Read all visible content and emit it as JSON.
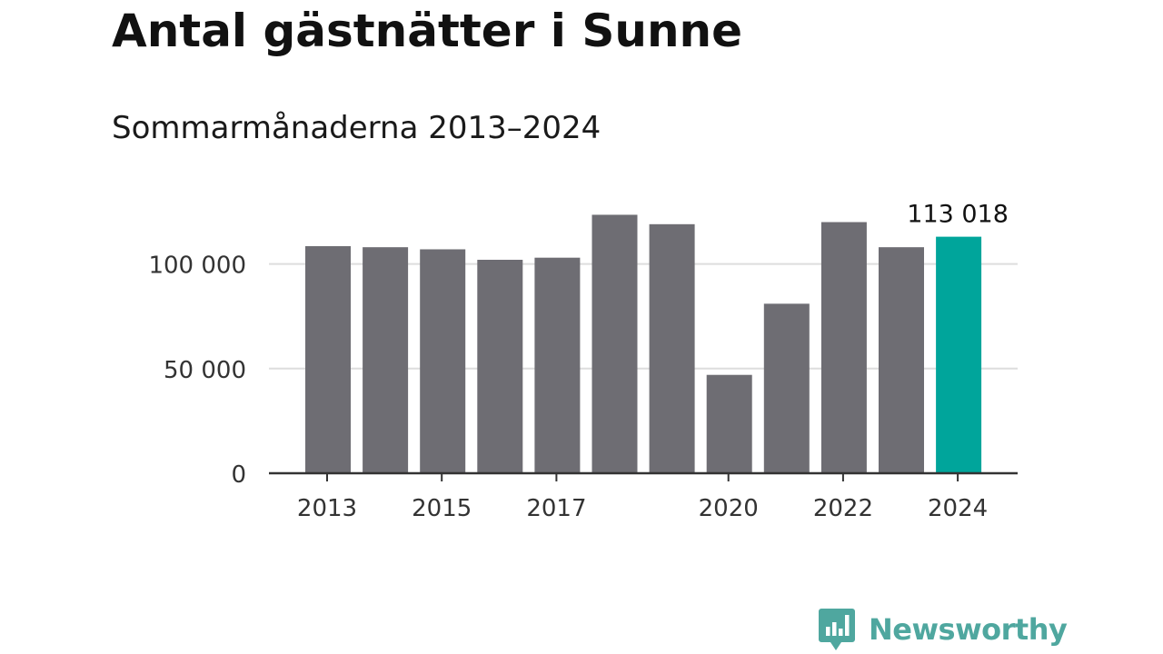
{
  "title": "Antal gästnätter i Sunne",
  "subtitle": "Sommarmånaderna 2013–2024",
  "brand": {
    "name": "Newsworthy",
    "logo_icon": "bar-chart-speech-bubble-icon",
    "color": "#4fa79f"
  },
  "colors": {
    "bar": "#6e6d73",
    "highlight": "#00a59b",
    "grid": "#dddddd",
    "axis": "#333333",
    "text": "#333333"
  },
  "chart_data": {
    "type": "bar",
    "categories": [
      "2013",
      "2014",
      "2015",
      "2016",
      "2017",
      "2018",
      "2019",
      "2020",
      "2021",
      "2022",
      "2023",
      "2024"
    ],
    "values": [
      108500,
      108000,
      107000,
      102000,
      103000,
      123500,
      119000,
      47000,
      81000,
      120000,
      108000,
      113018
    ],
    "highlight_index": 11,
    "data_label": "113 018",
    "x_tick_labels": [
      "2013",
      "",
      "2015",
      "",
      "2017",
      "",
      "",
      "2020",
      "",
      "2022",
      "",
      "2024"
    ],
    "y_ticks": [
      0,
      50000,
      100000
    ],
    "y_tick_labels": [
      "0",
      "50 000",
      "100 000"
    ],
    "ylim": [
      0,
      125000
    ],
    "grid": true,
    "xlabel": "",
    "ylabel": ""
  }
}
